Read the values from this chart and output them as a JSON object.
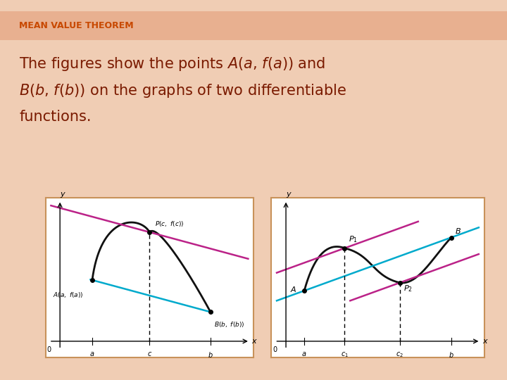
{
  "bg_color": "#f0cdb4",
  "header_bar_color": "#e8b090",
  "header_text": "MEAN VALUE THEOREM",
  "header_color": "#c84800",
  "header_fontsize": 9,
  "body_text_color": "#7a1a00",
  "body_fontsize": 15,
  "panel_border_color": "#c8925a",
  "panel_bg": "#ffffff",
  "fig_width": 7.2,
  "fig_height": 5.4,
  "secant_color": "#00aacc",
  "tangent_color": "#bb2288",
  "curve_color": "#111111"
}
